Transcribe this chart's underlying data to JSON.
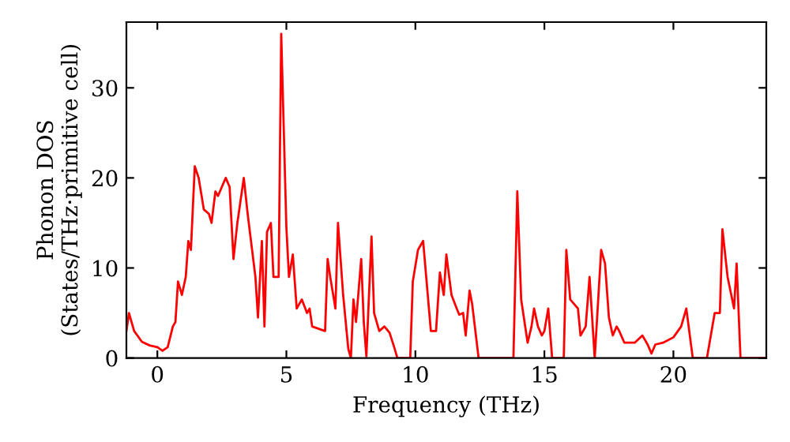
{
  "chart_data": {
    "type": "line",
    "xlabel": "Frequency (THz)",
    "ylabel": "Phonon DOS\n(States/THz·primitive cell)",
    "xlim": [
      -1.2,
      23.6
    ],
    "ylim": [
      0,
      37.3
    ],
    "xticks": [
      0,
      5,
      10,
      15,
      20
    ],
    "yticks": [
      0,
      10,
      20,
      30
    ],
    "grid": false,
    "legend": false,
    "series": [
      {
        "color": "#ff0000",
        "x": [
          -1.2,
          -1.1,
          -0.9,
          -0.6,
          -0.3,
          0,
          0.2,
          0.4,
          0.6,
          0.7,
          0.8,
          0.95,
          1.1,
          1.2,
          1.3,
          1.45,
          1.6,
          1.8,
          2.0,
          2.1,
          2.25,
          2.35,
          2.5,
          2.65,
          2.8,
          2.95,
          3.1,
          3.35,
          3.5,
          3.8,
          3.9,
          4.05,
          4.15,
          4.25,
          4.4,
          4.5,
          4.7,
          4.8,
          5.0,
          5.1,
          5.25,
          5.4,
          5.6,
          5.8,
          5.9,
          6.0,
          6.3,
          6.5,
          6.6,
          6.7,
          6.9,
          7.0,
          7.2,
          7.4,
          7.5,
          7.6,
          7.7,
          7.9,
          8.0,
          8.1,
          8.3,
          8.4,
          8.6,
          8.8,
          9.0,
          9.2,
          9.3,
          9.8,
          9.9,
          10.1,
          10.3,
          10.6,
          10.8,
          10.95,
          11.1,
          11.2,
          11.4,
          11.6,
          11.7,
          11.85,
          11.95,
          12.1,
          12.2,
          12.45,
          13.8,
          13.95,
          14.1,
          14.35,
          14.5,
          14.6,
          14.75,
          14.9,
          15.0,
          15.15,
          15.3,
          15.75,
          15.85,
          16.0,
          16.3,
          16.4,
          16.6,
          16.75,
          16.95,
          17.2,
          17.35,
          17.5,
          17.65,
          17.8,
          17.9,
          18.1,
          18.5,
          18.8,
          19.0,
          19.15,
          19.3,
          19.6,
          20.0,
          20.3,
          20.5,
          20.75,
          21.3,
          21.6,
          21.8,
          21.9,
          22.1,
          22.35,
          22.45,
          22.6,
          23.6
        ],
        "values": [
          3,
          5,
          3,
          1.8,
          1.4,
          1.2,
          0.8,
          1.2,
          3.5,
          4,
          8.5,
          7,
          9,
          13,
          12,
          21.3,
          20,
          16.5,
          16,
          15,
          18.5,
          18,
          19,
          20,
          19,
          11,
          15,
          20,
          16,
          9,
          4.5,
          13,
          3.5,
          14,
          15,
          9,
          9,
          36,
          14.5,
          9,
          11.5,
          5.5,
          6.5,
          5,
          5.5,
          3.5,
          3.2,
          3,
          11,
          9,
          5.5,
          15,
          7,
          1,
          0,
          6.5,
          4,
          11,
          4,
          0.2,
          13.5,
          5,
          3,
          3.5,
          2.8,
          1,
          0,
          0,
          8.5,
          12,
          13,
          3,
          3,
          9.5,
          7,
          11.5,
          7,
          5.5,
          4.8,
          5,
          2.5,
          7.5,
          6,
          0,
          0,
          18.5,
          6.5,
          1.7,
          3.5,
          5.5,
          3.5,
          2.5,
          3,
          5.5,
          0,
          0,
          12,
          6.5,
          5.5,
          2.5,
          3.5,
          9,
          0,
          12,
          10.5,
          4.5,
          2.5,
          3.5,
          3,
          1.7,
          1.7,
          2.5,
          1.5,
          0.5,
          1.5,
          1.7,
          2.3,
          3.5,
          5.5,
          0,
          0,
          5,
          5,
          14.3,
          9,
          5.5,
          10.5,
          0,
          0
        ]
      }
    ]
  }
}
